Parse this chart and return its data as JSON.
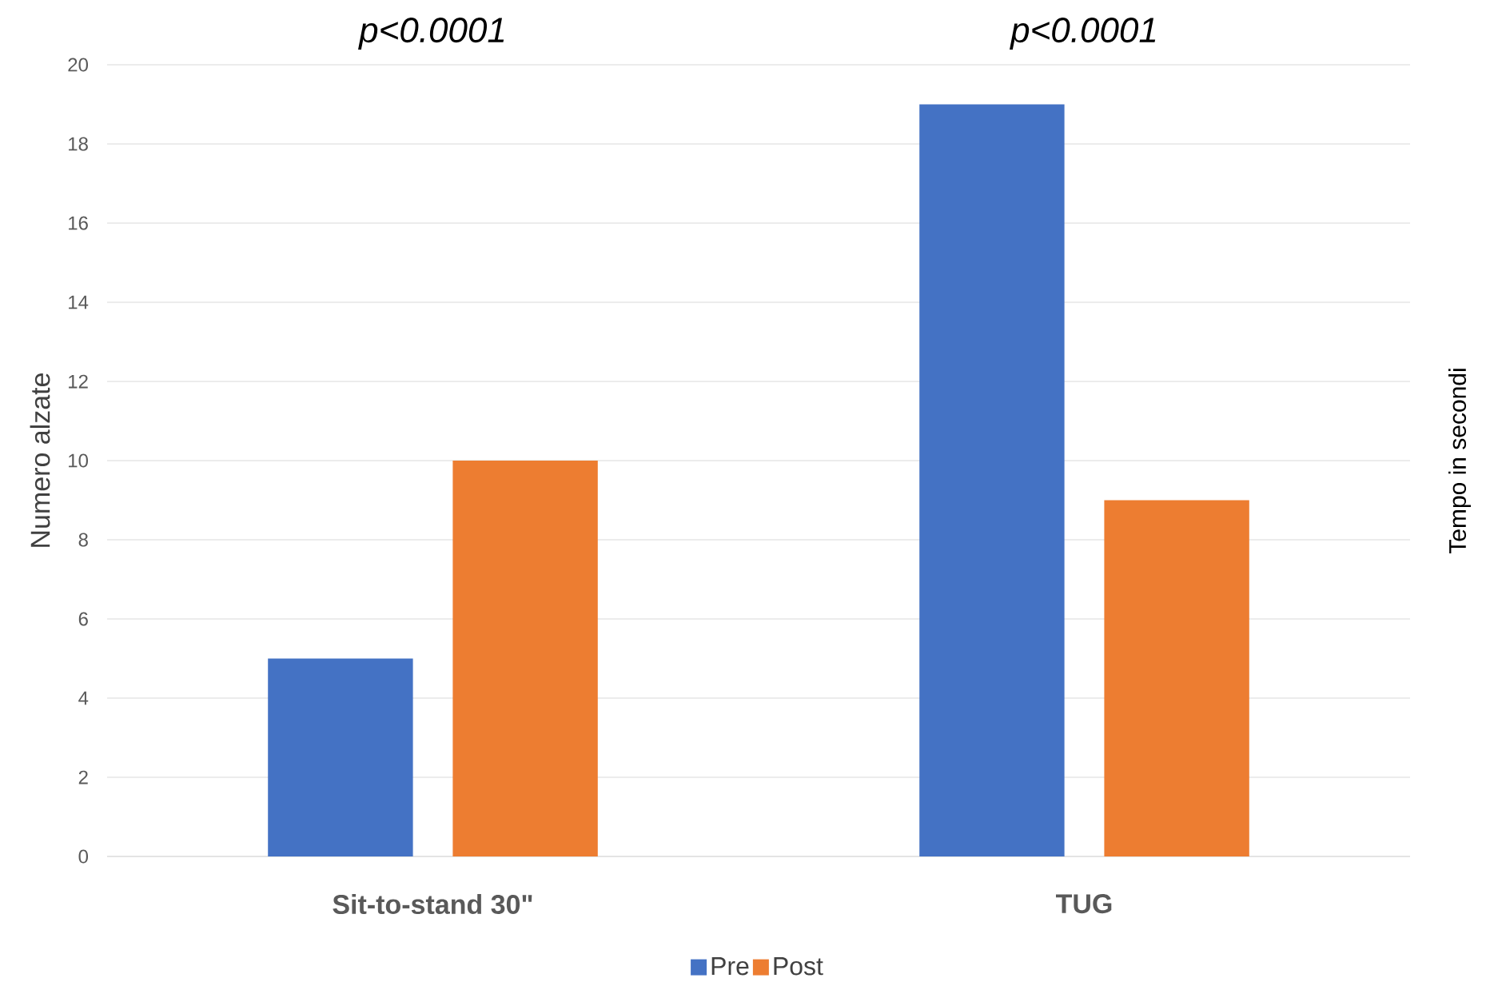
{
  "chart_data": {
    "type": "bar",
    "categories": [
      "Sit-to-stand 30\"",
      "TUG"
    ],
    "series": [
      {
        "name": "Pre",
        "color": "#4472c4",
        "values": [
          5,
          19
        ]
      },
      {
        "name": "Post",
        "color": "#ed7d31",
        "values": [
          10,
          9
        ]
      }
    ],
    "ylabel": "Numero alzate",
    "y2label": "Tempo in secondi",
    "annotations": [
      "p<0.0001",
      "p<0.0001"
    ],
    "ylim": [
      0,
      20
    ],
    "yticks": [
      0,
      2,
      4,
      6,
      8,
      10,
      12,
      14,
      16,
      18,
      20
    ],
    "grid": "y",
    "legend": "bottom"
  }
}
